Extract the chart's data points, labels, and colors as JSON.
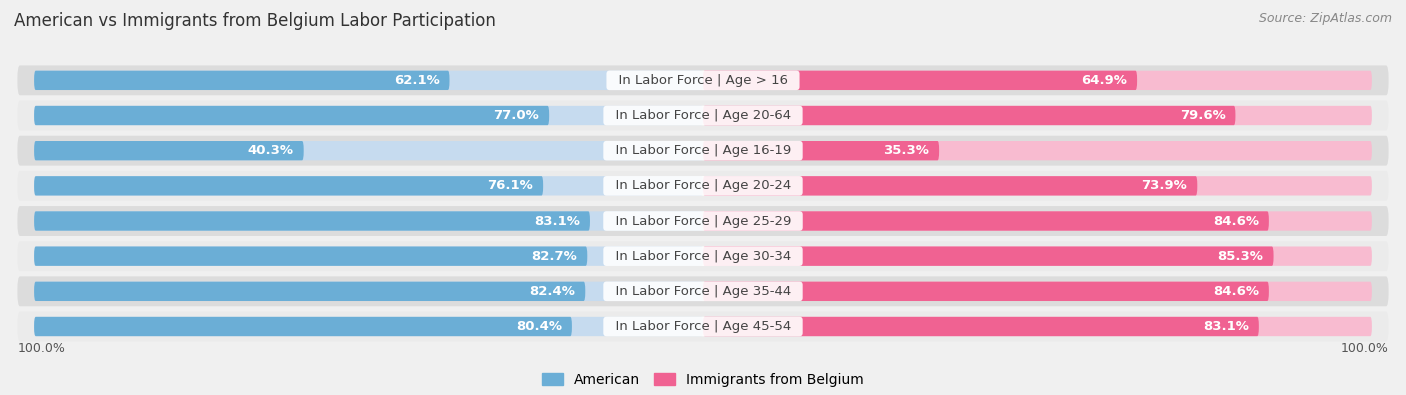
{
  "title": "American vs Immigrants from Belgium Labor Participation",
  "source": "Source: ZipAtlas.com",
  "categories": [
    "In Labor Force | Age > 16",
    "In Labor Force | Age 20-64",
    "In Labor Force | Age 16-19",
    "In Labor Force | Age 20-24",
    "In Labor Force | Age 25-29",
    "In Labor Force | Age 30-34",
    "In Labor Force | Age 35-44",
    "In Labor Force | Age 45-54"
  ],
  "american_values": [
    62.1,
    77.0,
    40.3,
    76.1,
    83.1,
    82.7,
    82.4,
    80.4
  ],
  "belgium_values": [
    64.9,
    79.6,
    35.3,
    73.9,
    84.6,
    85.3,
    84.6,
    83.1
  ],
  "american_color": "#6baed6",
  "american_color_light": "#c6dbef",
  "belgium_color": "#f06292",
  "belgium_color_light": "#f8bbd0",
  "background_color": "#f0f0f0",
  "row_bg_even": "#dcdcdc",
  "row_bg_odd": "#ebebeb",
  "label_fontsize": 9.5,
  "title_fontsize": 12,
  "source_fontsize": 9,
  "max_value": 100.0,
  "legend_labels": [
    "American",
    "Immigrants from Belgium"
  ],
  "bottom_label": "100.0%"
}
